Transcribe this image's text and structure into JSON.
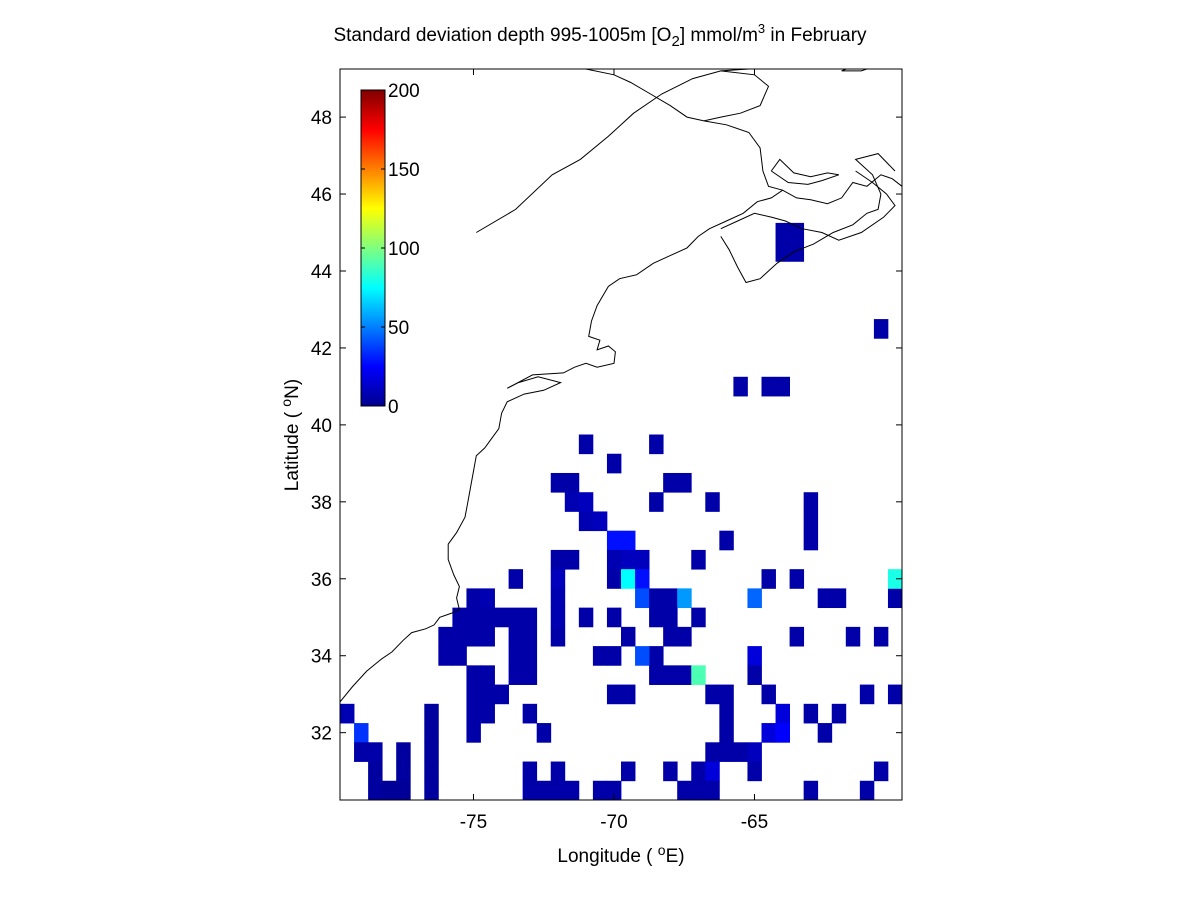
{
  "chart_data": {
    "type": "heatmap",
    "title": {
      "prefix": "Standard deviation depth 995-1005m [O",
      "subscript": "2",
      "middle": "] mmol/m",
      "superscript": "3",
      "suffix": " in February"
    },
    "xlabel": {
      "prefix": "Longitude ( ",
      "sup": "o",
      "suffix": "E)"
    },
    "ylabel": {
      "prefix": "Latitude ( ",
      "sup": "o",
      "suffix": "N)"
    },
    "xlim": [
      -79.75,
      -59.75
    ],
    "ylim": [
      30.25,
      49.25
    ],
    "xticks": [
      -75,
      -70,
      -65
    ],
    "xtick_labels": [
      "-75",
      "-70",
      "-65"
    ],
    "yticks": [
      32,
      34,
      36,
      38,
      40,
      42,
      44,
      46,
      48
    ],
    "ytick_labels": [
      "32",
      "34",
      "36",
      "38",
      "40",
      "42",
      "44",
      "46",
      "48"
    ],
    "colorbar": {
      "colormap": "jet",
      "range": [
        0,
        200
      ],
      "ticks": [
        0,
        50,
        100,
        150,
        200
      ],
      "tick_labels": [
        "0",
        "50",
        "100",
        "150",
        "200"
      ],
      "placement": "inside top-left"
    },
    "cell_size_deg": 0.5,
    "cells": [
      [
        -79.5,
        32.5,
        10
      ],
      [
        -79.0,
        32.0,
        35
      ],
      [
        -79.0,
        31.5,
        8
      ],
      [
        -78.5,
        31.5,
        8
      ],
      [
        -78.5,
        31.0,
        6
      ],
      [
        -78.5,
        30.5,
        6
      ],
      [
        -78.0,
        30.5,
        5
      ],
      [
        -77.5,
        30.5,
        5
      ],
      [
        -77.5,
        31.0,
        6
      ],
      [
        -77.5,
        31.5,
        6
      ],
      [
        -76.5,
        32.5,
        6
      ],
      [
        -76.5,
        32.0,
        6
      ],
      [
        -76.5,
        31.5,
        6
      ],
      [
        -76.5,
        31.0,
        6
      ],
      [
        -76.5,
        30.5,
        6
      ],
      [
        -76.0,
        34.5,
        8
      ],
      [
        -76.0,
        34.0,
        8
      ],
      [
        -75.5,
        34.5,
        8
      ],
      [
        -75.5,
        34.0,
        8
      ],
      [
        -75.5,
        35.0,
        8
      ],
      [
        -75.0,
        34.5,
        8
      ],
      [
        -75.0,
        35.0,
        8
      ],
      [
        -75.0,
        35.5,
        8
      ],
      [
        -75.0,
        33.5,
        8
      ],
      [
        -75.0,
        33.0,
        8
      ],
      [
        -75.0,
        32.5,
        8
      ],
      [
        -75.0,
        32.0,
        8
      ],
      [
        -74.5,
        35.5,
        10
      ],
      [
        -74.5,
        35.0,
        8
      ],
      [
        -74.5,
        34.5,
        8
      ],
      [
        -74.5,
        33.5,
        8
      ],
      [
        -74.5,
        33.0,
        8
      ],
      [
        -74.5,
        32.5,
        8
      ],
      [
        -74.0,
        35.0,
        8
      ],
      [
        -74.0,
        33.0,
        8
      ],
      [
        -73.5,
        36.0,
        8
      ],
      [
        -73.5,
        35.0,
        8
      ],
      [
        -73.5,
        34.5,
        8
      ],
      [
        -73.5,
        34.0,
        8
      ],
      [
        -73.5,
        33.5,
        8
      ],
      [
        -73.0,
        35.0,
        8
      ],
      [
        -73.0,
        34.5,
        8
      ],
      [
        -73.0,
        34.0,
        8
      ],
      [
        -73.0,
        33.5,
        8
      ],
      [
        -73.0,
        32.5,
        8
      ],
      [
        -72.5,
        32.0,
        8
      ],
      [
        -72.5,
        30.5,
        8
      ],
      [
        -73.0,
        30.5,
        8
      ],
      [
        -73.0,
        31.0,
        8
      ],
      [
        -72.0,
        30.5,
        8
      ],
      [
        -72.0,
        31.0,
        8
      ],
      [
        -71.5,
        30.5,
        8
      ],
      [
        -72.0,
        36.5,
        8
      ],
      [
        -72.0,
        36.0,
        12
      ],
      [
        -72.0,
        35.5,
        10
      ],
      [
        -72.0,
        35.0,
        10
      ],
      [
        -72.0,
        34.5,
        8
      ],
      [
        -71.5,
        36.5,
        8
      ],
      [
        -71.0,
        35.0,
        8
      ],
      [
        -72.0,
        38.5,
        8
      ],
      [
        -71.5,
        38.5,
        8
      ],
      [
        -71.5,
        38.0,
        10
      ],
      [
        -71.0,
        38.0,
        12
      ],
      [
        -71.0,
        37.5,
        10
      ],
      [
        -70.5,
        37.5,
        12
      ],
      [
        -71.0,
        39.5,
        8
      ],
      [
        -70.0,
        39.0,
        8
      ],
      [
        -70.0,
        37.0,
        28
      ],
      [
        -69.5,
        37.0,
        28
      ],
      [
        -70.0,
        36.5,
        10
      ],
      [
        -69.5,
        36.5,
        12
      ],
      [
        -69.0,
        36.5,
        12
      ],
      [
        -70.0,
        36.0,
        8
      ],
      [
        -69.5,
        36.0,
        75
      ],
      [
        -69.0,
        36.0,
        28
      ],
      [
        -69.0,
        35.5,
        40
      ],
      [
        -70.0,
        35.0,
        8
      ],
      [
        -69.5,
        34.5,
        8
      ],
      [
        -68.5,
        35.5,
        8
      ],
      [
        -68.0,
        35.5,
        8
      ],
      [
        -67.5,
        35.5,
        55
      ],
      [
        -68.5,
        35.0,
        8
      ],
      [
        -68.0,
        35.0,
        8
      ],
      [
        -68.0,
        34.5,
        8
      ],
      [
        -68.5,
        34.0,
        8
      ],
      [
        -67.5,
        34.5,
        8
      ],
      [
        -67.0,
        35.0,
        8
      ],
      [
        -70.5,
        34.0,
        8
      ],
      [
        -70.0,
        34.0,
        8
      ],
      [
        -69.0,
        34.0,
        40
      ],
      [
        -68.5,
        33.5,
        8
      ],
      [
        -68.0,
        33.5,
        8
      ],
      [
        -67.5,
        33.5,
        8
      ],
      [
        -67.0,
        33.5,
        90
      ],
      [
        -69.5,
        33.0,
        8
      ],
      [
        -70.0,
        33.0,
        8
      ],
      [
        -68.5,
        39.5,
        8
      ],
      [
        -68.0,
        38.5,
        8
      ],
      [
        -67.5,
        38.5,
        8
      ],
      [
        -68.5,
        38.0,
        8
      ],
      [
        -66.5,
        38.0,
        8
      ],
      [
        -66.0,
        37.0,
        8
      ],
      [
        -67.0,
        36.5,
        8
      ],
      [
        -69.5,
        31.0,
        8
      ],
      [
        -68.0,
        31.0,
        8
      ],
      [
        -67.0,
        31.0,
        8
      ],
      [
        -66.5,
        31.0,
        18
      ],
      [
        -66.5,
        31.5,
        8
      ],
      [
        -67.0,
        30.5,
        8
      ],
      [
        -67.5,
        30.5,
        8
      ],
      [
        -66.5,
        30.5,
        8
      ],
      [
        -70.5,
        30.5,
        8
      ],
      [
        -70.0,
        30.5,
        8
      ],
      [
        -66.5,
        33.0,
        8
      ],
      [
        -66.0,
        33.0,
        8
      ],
      [
        -66.0,
        32.5,
        8
      ],
      [
        -66.0,
        32.0,
        8
      ],
      [
        -66.0,
        31.5,
        8
      ],
      [
        -65.5,
        31.5,
        8
      ],
      [
        -65.0,
        31.5,
        12
      ],
      [
        -65.0,
        34.0,
        18
      ],
      [
        -65.0,
        33.5,
        8
      ],
      [
        -64.5,
        33.0,
        8
      ],
      [
        -65.0,
        31.0,
        8
      ],
      [
        -64.5,
        32.0,
        18
      ],
      [
        -64.0,
        32.5,
        18
      ],
      [
        -64.0,
        32.0,
        25
      ],
      [
        -65.0,
        35.5,
        45
      ],
      [
        -64.5,
        36.0,
        8
      ],
      [
        -63.0,
        37.5,
        8
      ],
      [
        -63.0,
        38.0,
        8
      ],
      [
        -63.0,
        37.0,
        8
      ],
      [
        -63.5,
        34.5,
        8
      ],
      [
        -63.5,
        36.0,
        8
      ],
      [
        -62.5,
        35.5,
        8
      ],
      [
        -62.0,
        35.5,
        8
      ],
      [
        -63.0,
        32.5,
        8
      ],
      [
        -62.5,
        32.0,
        8
      ],
      [
        -62.0,
        32.5,
        8
      ],
      [
        -61.5,
        34.5,
        8
      ],
      [
        -63.0,
        30.5,
        8
      ],
      [
        -61.0,
        30.5,
        8
      ],
      [
        -60.5,
        31.0,
        8
      ],
      [
        -60.5,
        34.5,
        8
      ],
      [
        -61.0,
        33.0,
        8
      ],
      [
        -60.0,
        33.0,
        8
      ],
      [
        -60.0,
        35.5,
        8
      ],
      [
        -60.0,
        36.0,
        80
      ],
      [
        -65.5,
        41.0,
        8
      ],
      [
        -64.5,
        41.0,
        8
      ],
      [
        -64.0,
        41.0,
        8
      ],
      [
        -60.5,
        42.5,
        8
      ],
      [
        -64.0,
        44.5,
        8
      ],
      [
        -63.5,
        44.5,
        8
      ],
      [
        -64.0,
        45.0,
        8
      ],
      [
        -63.5,
        45.0,
        8
      ]
    ],
    "coastline": [
      [
        [
          -79.75,
          32.8
        ],
        [
          -79.3,
          33.2
        ],
        [
          -78.8,
          33.6
        ],
        [
          -78.3,
          33.9
        ],
        [
          -77.9,
          34.1
        ],
        [
          -77.5,
          34.4
        ],
        [
          -77.2,
          34.6
        ],
        [
          -76.7,
          34.7
        ],
        [
          -76.4,
          34.8
        ],
        [
          -76.2,
          35.0
        ],
        [
          -75.8,
          35.1
        ],
        [
          -75.5,
          35.2
        ],
        [
          -75.6,
          35.5
        ],
        [
          -75.5,
          35.8
        ],
        [
          -75.7,
          36.1
        ],
        [
          -75.9,
          36.5
        ],
        [
          -75.9,
          36.9
        ],
        [
          -75.6,
          37.2
        ],
        [
          -75.3,
          37.6
        ],
        [
          -75.2,
          38.0
        ],
        [
          -75.1,
          38.4
        ],
        [
          -75.0,
          38.8
        ],
        [
          -74.9,
          39.2
        ],
        [
          -74.6,
          39.4
        ],
        [
          -74.4,
          39.6
        ],
        [
          -74.1,
          39.9
        ],
        [
          -74.0,
          40.3
        ],
        [
          -73.8,
          40.6
        ],
        [
          -73.2,
          40.8
        ],
        [
          -72.5,
          40.9
        ],
        [
          -71.9,
          41.1
        ],
        [
          -72.7,
          41.25
        ],
        [
          -73.4,
          41.1
        ],
        [
          -73.8,
          40.95
        ],
        [
          -72.9,
          41.3
        ],
        [
          -71.8,
          41.35
        ],
        [
          -71.4,
          41.5
        ],
        [
          -71.0,
          41.6
        ],
        [
          -70.6,
          41.5
        ],
        [
          -70.0,
          41.6
        ],
        [
          -69.95,
          41.9
        ],
        [
          -70.2,
          42.05
        ],
        [
          -70.6,
          41.95
        ],
        [
          -70.5,
          42.2
        ],
        [
          -70.9,
          42.3
        ],
        [
          -70.8,
          42.7
        ],
        [
          -70.6,
          43.1
        ],
        [
          -70.2,
          43.6
        ],
        [
          -69.8,
          43.8
        ],
        [
          -69.2,
          43.9
        ],
        [
          -68.6,
          44.2
        ],
        [
          -68.0,
          44.4
        ],
        [
          -67.4,
          44.6
        ],
        [
          -67.0,
          44.9
        ],
        [
          -66.6,
          45.1
        ],
        [
          -66.0,
          45.3
        ],
        [
          -65.4,
          45.5
        ],
        [
          -64.9,
          45.8
        ],
        [
          -64.4,
          45.9
        ],
        [
          -64.0,
          46.1
        ],
        [
          -63.5,
          45.9
        ],
        [
          -63.0,
          45.85
        ],
        [
          -62.4,
          45.75
        ],
        [
          -61.9,
          45.9
        ],
        [
          -61.5,
          46.3
        ],
        [
          -61.0,
          46.2
        ],
        [
          -60.5,
          46.5
        ],
        [
          -60.1,
          46.4
        ],
        [
          -59.75,
          46.2
        ]
      ],
      [
        [
          -74.9,
          45.0
        ],
        [
          -73.5,
          45.6
        ],
        [
          -72.2,
          46.5
        ],
        [
          -71.2,
          46.9
        ],
        [
          -70.2,
          47.5
        ],
        [
          -69.3,
          48.1
        ],
        [
          -68.3,
          48.6
        ],
        [
          -67.2,
          49.0
        ],
        [
          -66.2,
          49.2
        ],
        [
          -65.2,
          49.25
        ]
      ],
      [
        [
          -66.2,
          49.2
        ],
        [
          -65.0,
          49.1
        ],
        [
          -64.5,
          48.8
        ],
        [
          -64.8,
          48.3
        ],
        [
          -65.5,
          48.1
        ],
        [
          -66.2,
          48.0
        ],
        [
          -66.8,
          47.9
        ],
        [
          -67.4,
          48.0
        ],
        [
          -68.0,
          48.3
        ],
        [
          -68.7,
          48.6
        ],
        [
          -69.4,
          48.9
        ],
        [
          -70.0,
          49.1
        ],
        [
          -71.0,
          49.25
        ]
      ],
      [
        [
          -66.8,
          47.9
        ],
        [
          -66.0,
          47.8
        ],
        [
          -65.2,
          47.6
        ],
        [
          -64.8,
          47.2
        ],
        [
          -64.7,
          46.6
        ],
        [
          -64.5,
          46.2
        ],
        [
          -64.0,
          46.1
        ]
      ],
      [
        [
          -66.2,
          45.1
        ],
        [
          -65.6,
          45.3
        ],
        [
          -65.0,
          45.5
        ],
        [
          -64.4,
          45.4
        ],
        [
          -63.9,
          45.3
        ],
        [
          -63.3,
          45.1
        ],
        [
          -62.6,
          45.0
        ],
        [
          -62.0,
          44.8
        ],
        [
          -61.2,
          45.0
        ],
        [
          -60.4,
          45.4
        ],
        [
          -60.0,
          45.7
        ],
        [
          -60.3,
          46.0
        ],
        [
          -60.8,
          46.3
        ],
        [
          -61.4,
          46.6
        ]
      ],
      [
        [
          -66.2,
          44.9
        ],
        [
          -65.9,
          44.55
        ],
        [
          -65.6,
          44.1
        ],
        [
          -65.3,
          43.7
        ],
        [
          -64.8,
          43.8
        ],
        [
          -64.2,
          44.2
        ],
        [
          -63.6,
          44.5
        ],
        [
          -62.9,
          44.7
        ],
        [
          -62.2,
          45.0
        ],
        [
          -61.5,
          45.2
        ],
        [
          -61.0,
          45.5
        ],
        [
          -60.6,
          45.6
        ],
        [
          -60.5,
          46.0
        ],
        [
          -60.8,
          46.5
        ],
        [
          -61.4,
          46.9
        ],
        [
          -60.6,
          47.05
        ],
        [
          -60.0,
          46.6
        ]
      ],
      [
        [
          -64.4,
          46.6
        ],
        [
          -63.8,
          46.3
        ],
        [
          -63.1,
          46.25
        ],
        [
          -62.6,
          46.35
        ],
        [
          -62.0,
          46.5
        ],
        [
          -62.4,
          46.55
        ],
        [
          -63.0,
          46.45
        ],
        [
          -63.6,
          46.55
        ],
        [
          -64.1,
          46.9
        ],
        [
          -64.4,
          46.6
        ]
      ],
      [
        [
          -61.9,
          49.2
        ],
        [
          -61.2,
          49.2
        ],
        [
          -60.6,
          49.35
        ],
        [
          -61.4,
          49.35
        ],
        [
          -61.9,
          49.2
        ]
      ]
    ]
  }
}
